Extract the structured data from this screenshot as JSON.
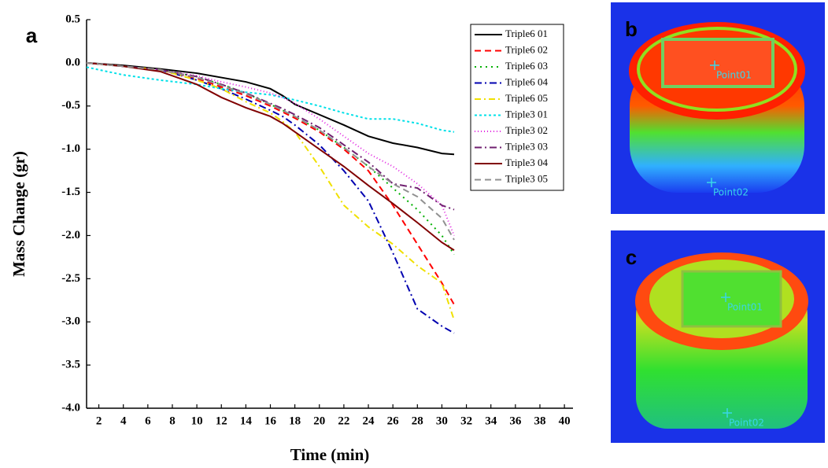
{
  "chart_data": {
    "type": "line",
    "panel_label": "a",
    "x_label": "Time (min)",
    "y_label": "Mass Change (gr)",
    "x": [
      1,
      4,
      7,
      10,
      12,
      14,
      16,
      17,
      18,
      20,
      22,
      24,
      26,
      28,
      30,
      31
    ],
    "xlim": [
      1,
      40.7
    ],
    "xticks": [
      2,
      4,
      6,
      8,
      10,
      12,
      14,
      16,
      18,
      20,
      22,
      24,
      26,
      28,
      30,
      32,
      34,
      36,
      38,
      40
    ],
    "ylim": [
      -4.0,
      0.5
    ],
    "yticks": [
      0.5,
      {
        "value": 0,
        "label": "0.0"
      },
      -0.5,
      {
        "value": -1,
        "label": "-1.0"
      },
      -1.5,
      {
        "value": -2,
        "label": "-2.0"
      },
      -2.5,
      {
        "value": -3,
        "label": "-3.0"
      },
      -3.5,
      {
        "value": -4,
        "label": "-4.0"
      }
    ],
    "legend": "upper right",
    "grid": false,
    "series": [
      {
        "name": "Triple6 01",
        "color": "#000000",
        "dash": "none",
        "values": [
          0,
          -0.03,
          -0.07,
          -0.12,
          -0.17,
          -0.22,
          -0.3,
          -0.38,
          -0.48,
          -0.6,
          -0.72,
          -0.85,
          -0.93,
          -0.98,
          -1.05,
          -1.06
        ]
      },
      {
        "name": "Triple6 02",
        "color": "#ff0000",
        "dash": "8,5",
        "values": [
          0,
          -0.04,
          -0.08,
          -0.18,
          -0.28,
          -0.38,
          -0.5,
          -0.57,
          -0.64,
          -0.8,
          -1.0,
          -1.25,
          -1.65,
          -2.1,
          -2.55,
          -2.8
        ]
      },
      {
        "name": "Triple6 03",
        "color": "#00b000",
        "dash": "2,5",
        "values": [
          0,
          -0.04,
          -0.08,
          -0.16,
          -0.25,
          -0.35,
          -0.48,
          -0.55,
          -0.62,
          -0.78,
          -0.98,
          -1.2,
          -1.45,
          -1.7,
          -2.0,
          -2.22
        ]
      },
      {
        "name": "Triple6 04",
        "color": "#0000b0",
        "dash": "9,4,2,4",
        "values": [
          0,
          -0.04,
          -0.08,
          -0.2,
          -0.3,
          -0.42,
          -0.55,
          -0.62,
          -0.72,
          -0.95,
          -1.25,
          -1.6,
          -2.2,
          -2.85,
          -3.05,
          -3.13
        ]
      },
      {
        "name": "Triple6 05",
        "color": "#f0e000",
        "dash": "8,4,2,4",
        "values": [
          0,
          -0.04,
          -0.08,
          -0.2,
          -0.3,
          -0.45,
          -0.58,
          -0.68,
          -0.8,
          -1.2,
          -1.65,
          -1.9,
          -2.1,
          -2.35,
          -2.55,
          -2.98
        ]
      },
      {
        "name": "Triple3 01",
        "color": "#00e0e8",
        "dash": "3,3",
        "values": [
          -0.05,
          -0.14,
          -0.2,
          -0.25,
          -0.3,
          -0.34,
          -0.37,
          -0.4,
          -0.43,
          -0.5,
          -0.58,
          -0.65,
          -0.65,
          -0.7,
          -0.78,
          -0.8
        ]
      },
      {
        "name": "Triple3 02",
        "color": "#e020e0",
        "dash": "1,3",
        "values": [
          0,
          -0.04,
          -0.08,
          -0.15,
          -0.22,
          -0.28,
          -0.35,
          -0.4,
          -0.47,
          -0.65,
          -0.85,
          -1.05,
          -1.2,
          -1.4,
          -1.65,
          -2.0
        ]
      },
      {
        "name": "Triple3 03",
        "color": "#702070",
        "dash": "9,4,2,4",
        "values": [
          0,
          -0.04,
          -0.08,
          -0.16,
          -0.25,
          -0.35,
          -0.47,
          -0.53,
          -0.6,
          -0.75,
          -0.95,
          -1.15,
          -1.4,
          -1.45,
          -1.65,
          -1.7
        ]
      },
      {
        "name": "Triple3 04",
        "color": "#800000",
        "dash": "none",
        "values": [
          0,
          -0.04,
          -0.1,
          -0.25,
          -0.4,
          -0.52,
          -0.62,
          -0.7,
          -0.8,
          -1.0,
          -1.2,
          -1.42,
          -1.63,
          -1.85,
          -2.08,
          -2.17
        ]
      },
      {
        "name": "Triple3 05",
        "color": "#909090",
        "dash": "8,5",
        "values": [
          0,
          -0.04,
          -0.08,
          -0.17,
          -0.26,
          -0.36,
          -0.48,
          -0.55,
          -0.62,
          -0.78,
          -0.98,
          -1.2,
          -1.4,
          -1.55,
          -1.8,
          -2.05
        ]
      }
    ]
  },
  "images": [
    {
      "panel_label": "b",
      "points": [
        "Point01",
        "Point02"
      ]
    },
    {
      "panel_label": "c",
      "points": [
        "Point01",
        "Point02"
      ]
    }
  ]
}
